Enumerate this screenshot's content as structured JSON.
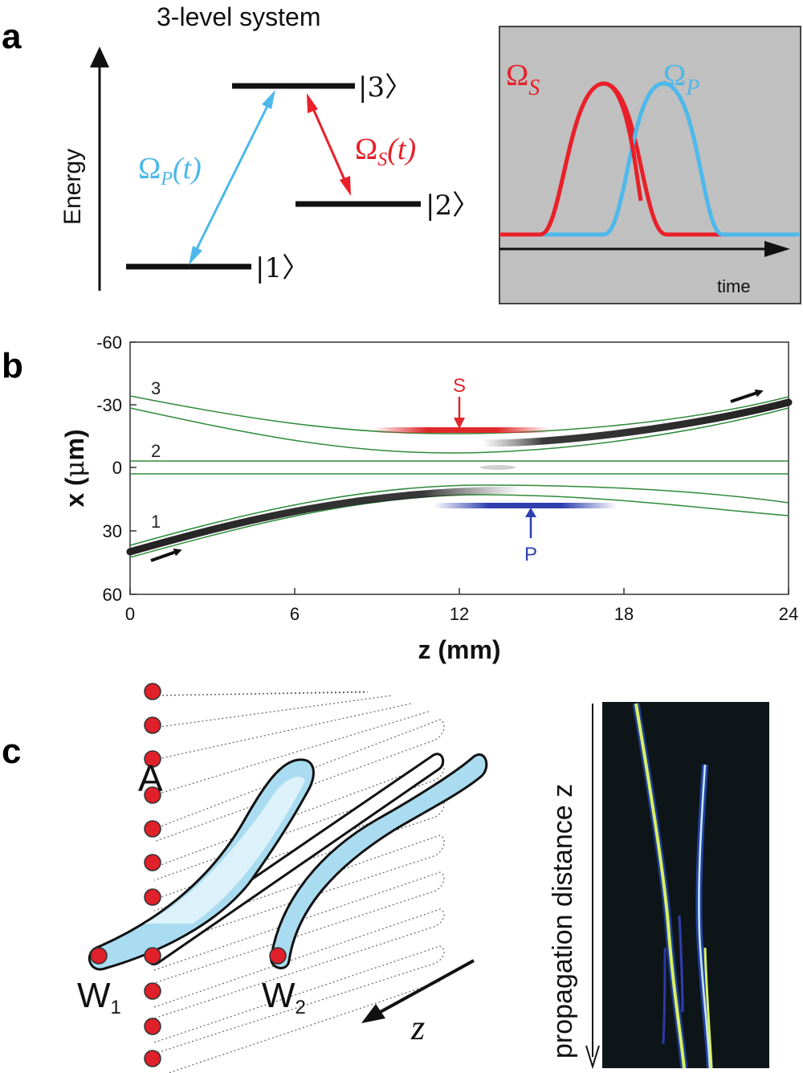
{
  "panel_a": {
    "letter": "a",
    "title": "3-level system",
    "energy_label": "Energy",
    "levels": [
      "|1〉",
      "|2〉",
      "|3〉"
    ],
    "pump_label": "ΩP(t)",
    "pump_symbol": "Ω",
    "pump_sub": "P",
    "pump_arg": "(t)",
    "stokes_symbol": "Ω",
    "stokes_sub": "S",
    "stokes_arg": "(t)",
    "pulse_stokes_sub": "S",
    "pulse_pump_sub": "P",
    "time_label": "time",
    "colors": {
      "pump": "#4db8ea",
      "stokes": "#e8202a",
      "inset_bg": "#c0c0c0"
    }
  },
  "panel_b": {
    "letter": "b",
    "xlabel": "z (mm)",
    "ylabel_prefix": "x (",
    "ylabel_mu": "μ",
    "ylabel_suffix": "m)",
    "x_ticks": [
      "0",
      "6",
      "12",
      "18",
      "24"
    ],
    "y_ticks": [
      "-60",
      "-30",
      "0",
      "30",
      "60"
    ],
    "waveguide_labels": [
      "3",
      "2",
      "1"
    ],
    "stokes_marker": "S",
    "pump_marker": "P",
    "colors": {
      "waveguide": "#2e8b3a",
      "stokes": "#e0282a",
      "pump": "#2f3fb0"
    }
  },
  "panel_c": {
    "letter": "c",
    "array_label": "A",
    "w1_main": "W",
    "w1_sub": "1",
    "w2_main": "W",
    "w2_sub": "2",
    "z_label": "z",
    "propagation_label": "propagation distance z",
    "colors": {
      "guide_fill": "#a9dcf0",
      "node": "#e0202a",
      "image_bg": "#0d1518",
      "trace": "#d8f060"
    }
  }
}
